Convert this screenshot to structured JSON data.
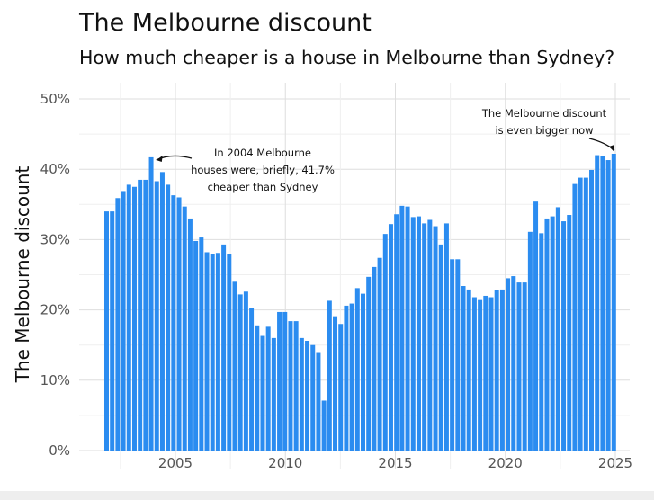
{
  "chart_data": {
    "type": "bar",
    "title": "The Melbourne discount",
    "subtitle": "How much cheaper is a house in Melbourne than Sydney?",
    "xlabel": "",
    "ylabel": "The Melbourne discount",
    "ylim": [
      0,
      50
    ],
    "xlim": [
      2002,
      2025.25
    ],
    "y_ticks": [
      "0%",
      "10%",
      "20%",
      "30%",
      "40%",
      "50%"
    ],
    "x_ticks": [
      "2005",
      "2010",
      "2015",
      "2020",
      "2025"
    ],
    "grid": true,
    "color": "#2b8cf0",
    "frequency": "quarterly",
    "values": [
      34.0,
      34.0,
      35.9,
      36.9,
      37.8,
      37.5,
      38.5,
      38.5,
      41.7,
      38.3,
      39.6,
      37.8,
      36.3,
      36.0,
      34.7,
      33.0,
      29.8,
      30.3,
      28.2,
      28.0,
      28.1,
      29.3,
      28.0,
      24.0,
      22.2,
      22.6,
      20.3,
      17.8,
      16.3,
      17.6,
      16.0,
      19.7,
      19.7,
      18.4,
      18.4,
      16.0,
      15.6,
      15.0,
      14.0,
      7.1,
      21.3,
      19.1,
      18.0,
      20.6,
      20.9,
      23.1,
      22.3,
      24.7,
      26.1,
      27.4,
      30.8,
      32.2,
      33.6,
      34.8,
      34.7,
      33.2,
      33.3,
      32.3,
      32.8,
      31.9,
      29.3,
      32.3,
      27.2,
      27.2,
      23.4,
      22.9,
      21.8,
      21.4,
      22.0,
      21.8,
      22.8,
      22.9,
      24.5,
      24.8,
      23.9,
      23.9,
      31.1,
      35.4,
      30.9,
      33.0,
      33.3,
      34.6,
      32.6,
      33.5,
      37.9,
      38.8,
      38.8,
      39.9,
      42.0,
      41.9,
      41.3,
      42.2
    ],
    "annotations": [
      {
        "lines": [
          "In 2004 Melbourne",
          "houses were, briefly, 41.7%",
          "cheaper than Sydney"
        ],
        "target_index": 8
      },
      {
        "lines": [
          "The Melbourne discount",
          "is even bigger now"
        ],
        "target_index": 91
      }
    ]
  }
}
